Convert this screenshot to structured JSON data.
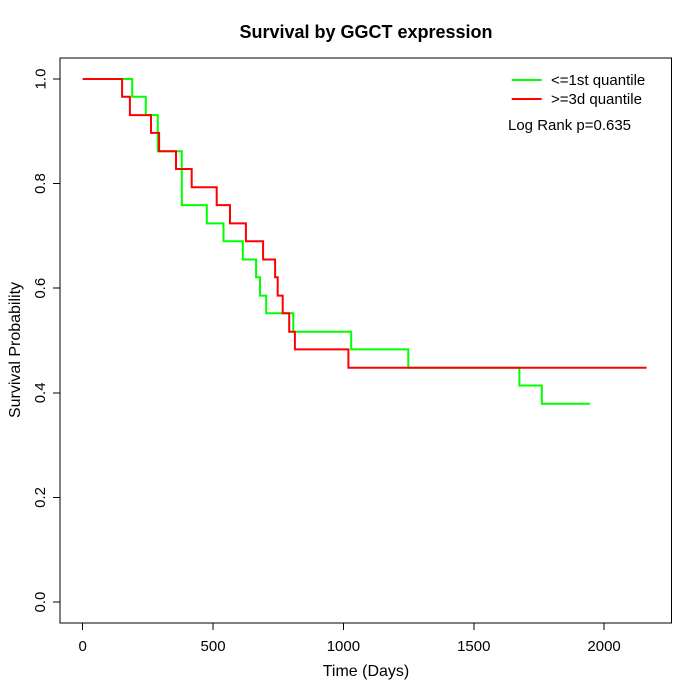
{
  "title": "Survival by GGCT expression",
  "axes": {
    "xlabel": "Time (Days)",
    "ylabel": "Survival Probability",
    "x_ticks": [
      0,
      500,
      1000,
      1500,
      2000
    ],
    "y_ticks": [
      "0.0",
      "0.2",
      "0.4",
      "0.6",
      "0.8",
      "1.0"
    ]
  },
  "legend": {
    "items": [
      {
        "label": "<=1st quantile",
        "color": "#00ff00"
      },
      {
        "label": ">=3d quantile",
        "color": "#ff0000"
      }
    ],
    "note": "Log Rank p=0.635"
  },
  "colors": {
    "group_low": "#00ff00",
    "group_high": "#ff0000",
    "axis": "#000000",
    "background": "#ffffff"
  },
  "chart_data": {
    "type": "line",
    "subtype": "kaplan-meier-step",
    "title": "Survival by GGCT expression",
    "xlabel": "Time (Days)",
    "ylabel": "Survival Probability",
    "xlim": [
      0,
      2170
    ],
    "ylim": [
      0.0,
      1.0
    ],
    "x_ticks": [
      0,
      500,
      1000,
      1500,
      2000
    ],
    "y_ticks": [
      0.0,
      0.2,
      0.4,
      0.6,
      0.8,
      1.0
    ],
    "grid": false,
    "legend_position": "top-right",
    "annotation": "Log Rank p=0.635",
    "series": [
      {
        "name": "<=1st quantile",
        "color": "#00ff00",
        "end_time": 1946,
        "points": [
          [
            0,
            1.0
          ],
          [
            190,
            0.966
          ],
          [
            242,
            0.931
          ],
          [
            288,
            0.862
          ],
          [
            380,
            0.759
          ],
          [
            476,
            0.724
          ],
          [
            540,
            0.69
          ],
          [
            614,
            0.655
          ],
          [
            665,
            0.621
          ],
          [
            680,
            0.586
          ],
          [
            704,
            0.552
          ],
          [
            808,
            0.517
          ],
          [
            1030,
            0.483
          ],
          [
            1249,
            0.448
          ],
          [
            1675,
            0.414
          ],
          [
            1761,
            0.379
          ]
        ]
      },
      {
        "name": ">=3d quantile",
        "color": "#ff0000",
        "end_time": 2163,
        "points": [
          [
            0,
            1.0
          ],
          [
            151,
            0.966
          ],
          [
            181,
            0.931
          ],
          [
            262,
            0.897
          ],
          [
            293,
            0.862
          ],
          [
            358,
            0.828
          ],
          [
            418,
            0.793
          ],
          [
            514,
            0.759
          ],
          [
            565,
            0.724
          ],
          [
            626,
            0.69
          ],
          [
            692,
            0.655
          ],
          [
            738,
            0.621
          ],
          [
            748,
            0.586
          ],
          [
            767,
            0.552
          ],
          [
            792,
            0.517
          ],
          [
            814,
            0.483
          ],
          [
            1019,
            0.448
          ]
        ]
      }
    ]
  }
}
